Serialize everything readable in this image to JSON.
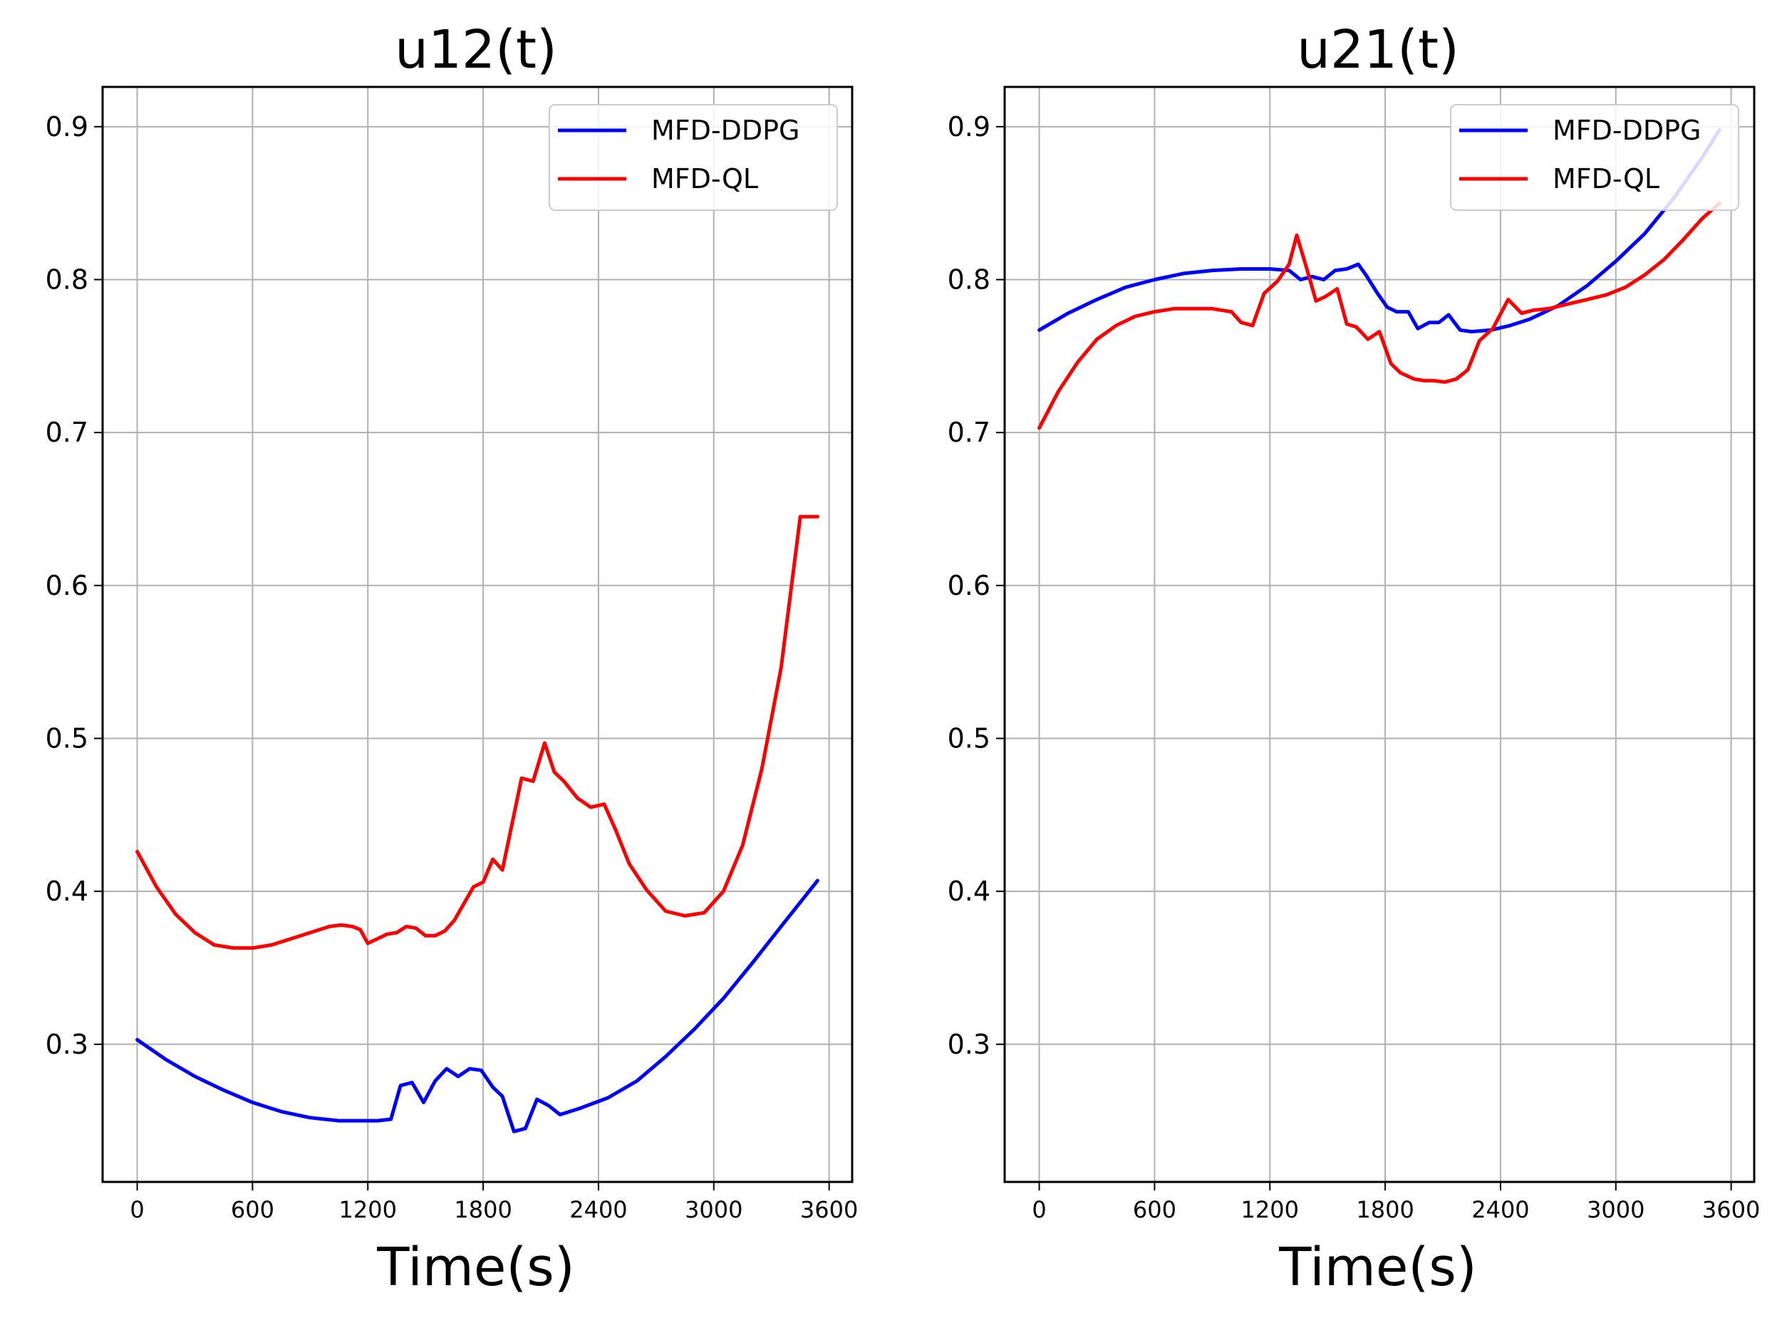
{
  "colors": {
    "MFD-DDPG": "#0000ff",
    "MFD-QL": "#ff0000",
    "grid": "#b0b0b0",
    "legend_border": "#cccccc"
  },
  "chart_data": [
    {
      "type": "line",
      "title": "u12(t)",
      "xlabel": "Time(s)",
      "ylabel": "",
      "xlim": [
        -180,
        3720
      ],
      "ylim": [
        0.21,
        0.926
      ],
      "xticks": [
        "0",
        "600",
        "1200",
        "1800",
        "2400",
        "3000",
        "3600"
      ],
      "yticks": [
        "0.3",
        "0.4",
        "0.5",
        "0.6",
        "0.7",
        "0.8",
        "0.9"
      ],
      "grid": true,
      "legend": "top-right",
      "series": [
        {
          "name": "MFD-DDPG",
          "x": [
            0,
            150,
            300,
            450,
            600,
            750,
            900,
            1050,
            1150,
            1250,
            1320,
            1370,
            1430,
            1490,
            1550,
            1610,
            1670,
            1730,
            1790,
            1850,
            1900,
            1960,
            2020,
            2080,
            2140,
            2200,
            2300,
            2450,
            2600,
            2750,
            2900,
            3050,
            3200,
            3350,
            3540
          ],
          "y": [
            0.303,
            0.29,
            0.279,
            0.27,
            0.262,
            0.256,
            0.252,
            0.25,
            0.25,
            0.25,
            0.251,
            0.273,
            0.275,
            0.262,
            0.276,
            0.284,
            0.279,
            0.284,
            0.283,
            0.272,
            0.266,
            0.243,
            0.245,
            0.264,
            0.26,
            0.254,
            0.258,
            0.265,
            0.276,
            0.292,
            0.31,
            0.33,
            0.353,
            0.377,
            0.407
          ]
        },
        {
          "name": "MFD-QL",
          "x": [
            0,
            100,
            200,
            300,
            400,
            500,
            600,
            700,
            800,
            900,
            1000,
            1060,
            1120,
            1160,
            1200,
            1250,
            1300,
            1350,
            1400,
            1450,
            1500,
            1550,
            1600,
            1650,
            1700,
            1750,
            1800,
            1850,
            1900,
            1950,
            2000,
            2060,
            2120,
            2170,
            2220,
            2290,
            2360,
            2430,
            2490,
            2560,
            2650,
            2750,
            2850,
            2950,
            3050,
            3150,
            3250,
            3350,
            3450,
            3540
          ],
          "y": [
            0.426,
            0.403,
            0.385,
            0.373,
            0.365,
            0.363,
            0.363,
            0.365,
            0.369,
            0.373,
            0.377,
            0.378,
            0.377,
            0.375,
            0.366,
            0.369,
            0.372,
            0.373,
            0.377,
            0.376,
            0.371,
            0.371,
            0.374,
            0.381,
            0.392,
            0.403,
            0.406,
            0.421,
            0.414,
            0.444,
            0.474,
            0.472,
            0.497,
            0.478,
            0.472,
            0.461,
            0.455,
            0.457,
            0.44,
            0.418,
            0.401,
            0.387,
            0.384,
            0.386,
            0.4,
            0.43,
            0.48,
            0.546,
            0.645,
            0.645
          ]
        }
      ]
    },
    {
      "type": "line",
      "title": "u21(t)",
      "xlabel": "Time(s)",
      "ylabel": "",
      "xlim": [
        -180,
        3720
      ],
      "ylim": [
        0.21,
        0.926
      ],
      "xticks": [
        "0",
        "600",
        "1200",
        "1800",
        "2400",
        "3000",
        "3600"
      ],
      "yticks": [
        "0.3",
        "0.4",
        "0.5",
        "0.6",
        "0.7",
        "0.8",
        "0.9"
      ],
      "grid": true,
      "legend": "top-right",
      "series": [
        {
          "name": "MFD-DDPG",
          "x": [
            0,
            150,
            300,
            450,
            600,
            750,
            900,
            1050,
            1200,
            1300,
            1360,
            1420,
            1480,
            1540,
            1600,
            1660,
            1700,
            1760,
            1810,
            1860,
            1920,
            1970,
            2030,
            2080,
            2130,
            2190,
            2250,
            2350,
            2450,
            2550,
            2700,
            2850,
            3000,
            3150,
            3300,
            3450,
            3540
          ],
          "y": [
            0.767,
            0.778,
            0.787,
            0.795,
            0.8,
            0.804,
            0.806,
            0.807,
            0.807,
            0.806,
            0.8,
            0.802,
            0.8,
            0.806,
            0.807,
            0.81,
            0.803,
            0.791,
            0.782,
            0.779,
            0.779,
            0.768,
            0.772,
            0.772,
            0.777,
            0.767,
            0.766,
            0.767,
            0.77,
            0.774,
            0.783,
            0.796,
            0.812,
            0.83,
            0.853,
            0.88,
            0.898
          ]
        },
        {
          "name": "MFD-QL",
          "x": [
            0,
            100,
            200,
            300,
            400,
            500,
            600,
            700,
            800,
            900,
            1000,
            1050,
            1110,
            1170,
            1240,
            1300,
            1340,
            1390,
            1440,
            1490,
            1550,
            1600,
            1650,
            1710,
            1770,
            1830,
            1880,
            1950,
            2000,
            2050,
            2110,
            2170,
            2230,
            2290,
            2360,
            2440,
            2510,
            2570,
            2650,
            2750,
            2850,
            2950,
            3050,
            3150,
            3250,
            3350,
            3450,
            3540
          ],
          "y": [
            0.703,
            0.727,
            0.746,
            0.761,
            0.77,
            0.776,
            0.779,
            0.781,
            0.781,
            0.781,
            0.779,
            0.772,
            0.77,
            0.791,
            0.799,
            0.81,
            0.829,
            0.808,
            0.786,
            0.789,
            0.794,
            0.771,
            0.769,
            0.761,
            0.766,
            0.745,
            0.739,
            0.735,
            0.734,
            0.734,
            0.733,
            0.735,
            0.741,
            0.76,
            0.768,
            0.787,
            0.778,
            0.78,
            0.781,
            0.784,
            0.787,
            0.79,
            0.795,
            0.803,
            0.813,
            0.826,
            0.84,
            0.85
          ]
        }
      ]
    }
  ]
}
